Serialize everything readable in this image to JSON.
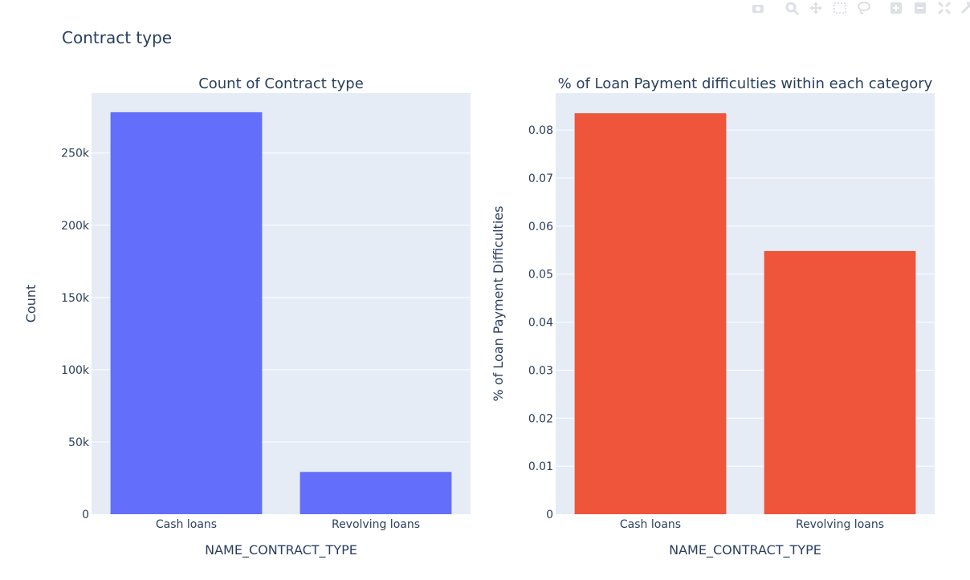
{
  "figure_title": "Contract type",
  "modebar": {
    "icons": [
      "camera-icon",
      "zoom-icon",
      "pan-icon",
      "box-select-icon",
      "lasso-select-icon",
      "zoom-in-icon",
      "zoom-out-icon",
      "autoscale-icon",
      "reset-axes-icon"
    ]
  },
  "colors": {
    "plot_bg": "#e5ecf6",
    "gridline": "#ffffff",
    "text": "#2a3f5f",
    "bar_left": "#636efa",
    "bar_right": "#ef553b"
  },
  "chart_data": [
    {
      "type": "bar",
      "title": "Count of Contract type",
      "xlabel": "NAME_CONTRACT_TYPE",
      "ylabel": "Count",
      "categories": [
        "Cash loans",
        "Revolving loans"
      ],
      "values": [
        278232,
        29279
      ],
      "ylim": [
        0,
        291500
      ],
      "yticks": [
        0,
        50000,
        100000,
        150000,
        200000,
        250000
      ],
      "ytick_labels": [
        "0",
        "50k",
        "100k",
        "150k",
        "200k",
        "250k"
      ],
      "grid": true,
      "color": "#636efa"
    },
    {
      "type": "bar",
      "title": "% of Loan Payment difficulties within each category",
      "xlabel": "NAME_CONTRACT_TYPE",
      "ylabel": "% of Loan Payment Difficulties",
      "categories": [
        "Cash loans",
        "Revolving loans"
      ],
      "values": [
        0.0835,
        0.0548
      ],
      "ylim": [
        0,
        0.0877
      ],
      "yticks": [
        0,
        0.01,
        0.02,
        0.03,
        0.04,
        0.05,
        0.06,
        0.07,
        0.08
      ],
      "ytick_labels": [
        "0",
        "0.01",
        "0.02",
        "0.03",
        "0.04",
        "0.05",
        "0.06",
        "0.07",
        "0.08"
      ],
      "grid": true,
      "color": "#ef553b"
    }
  ]
}
